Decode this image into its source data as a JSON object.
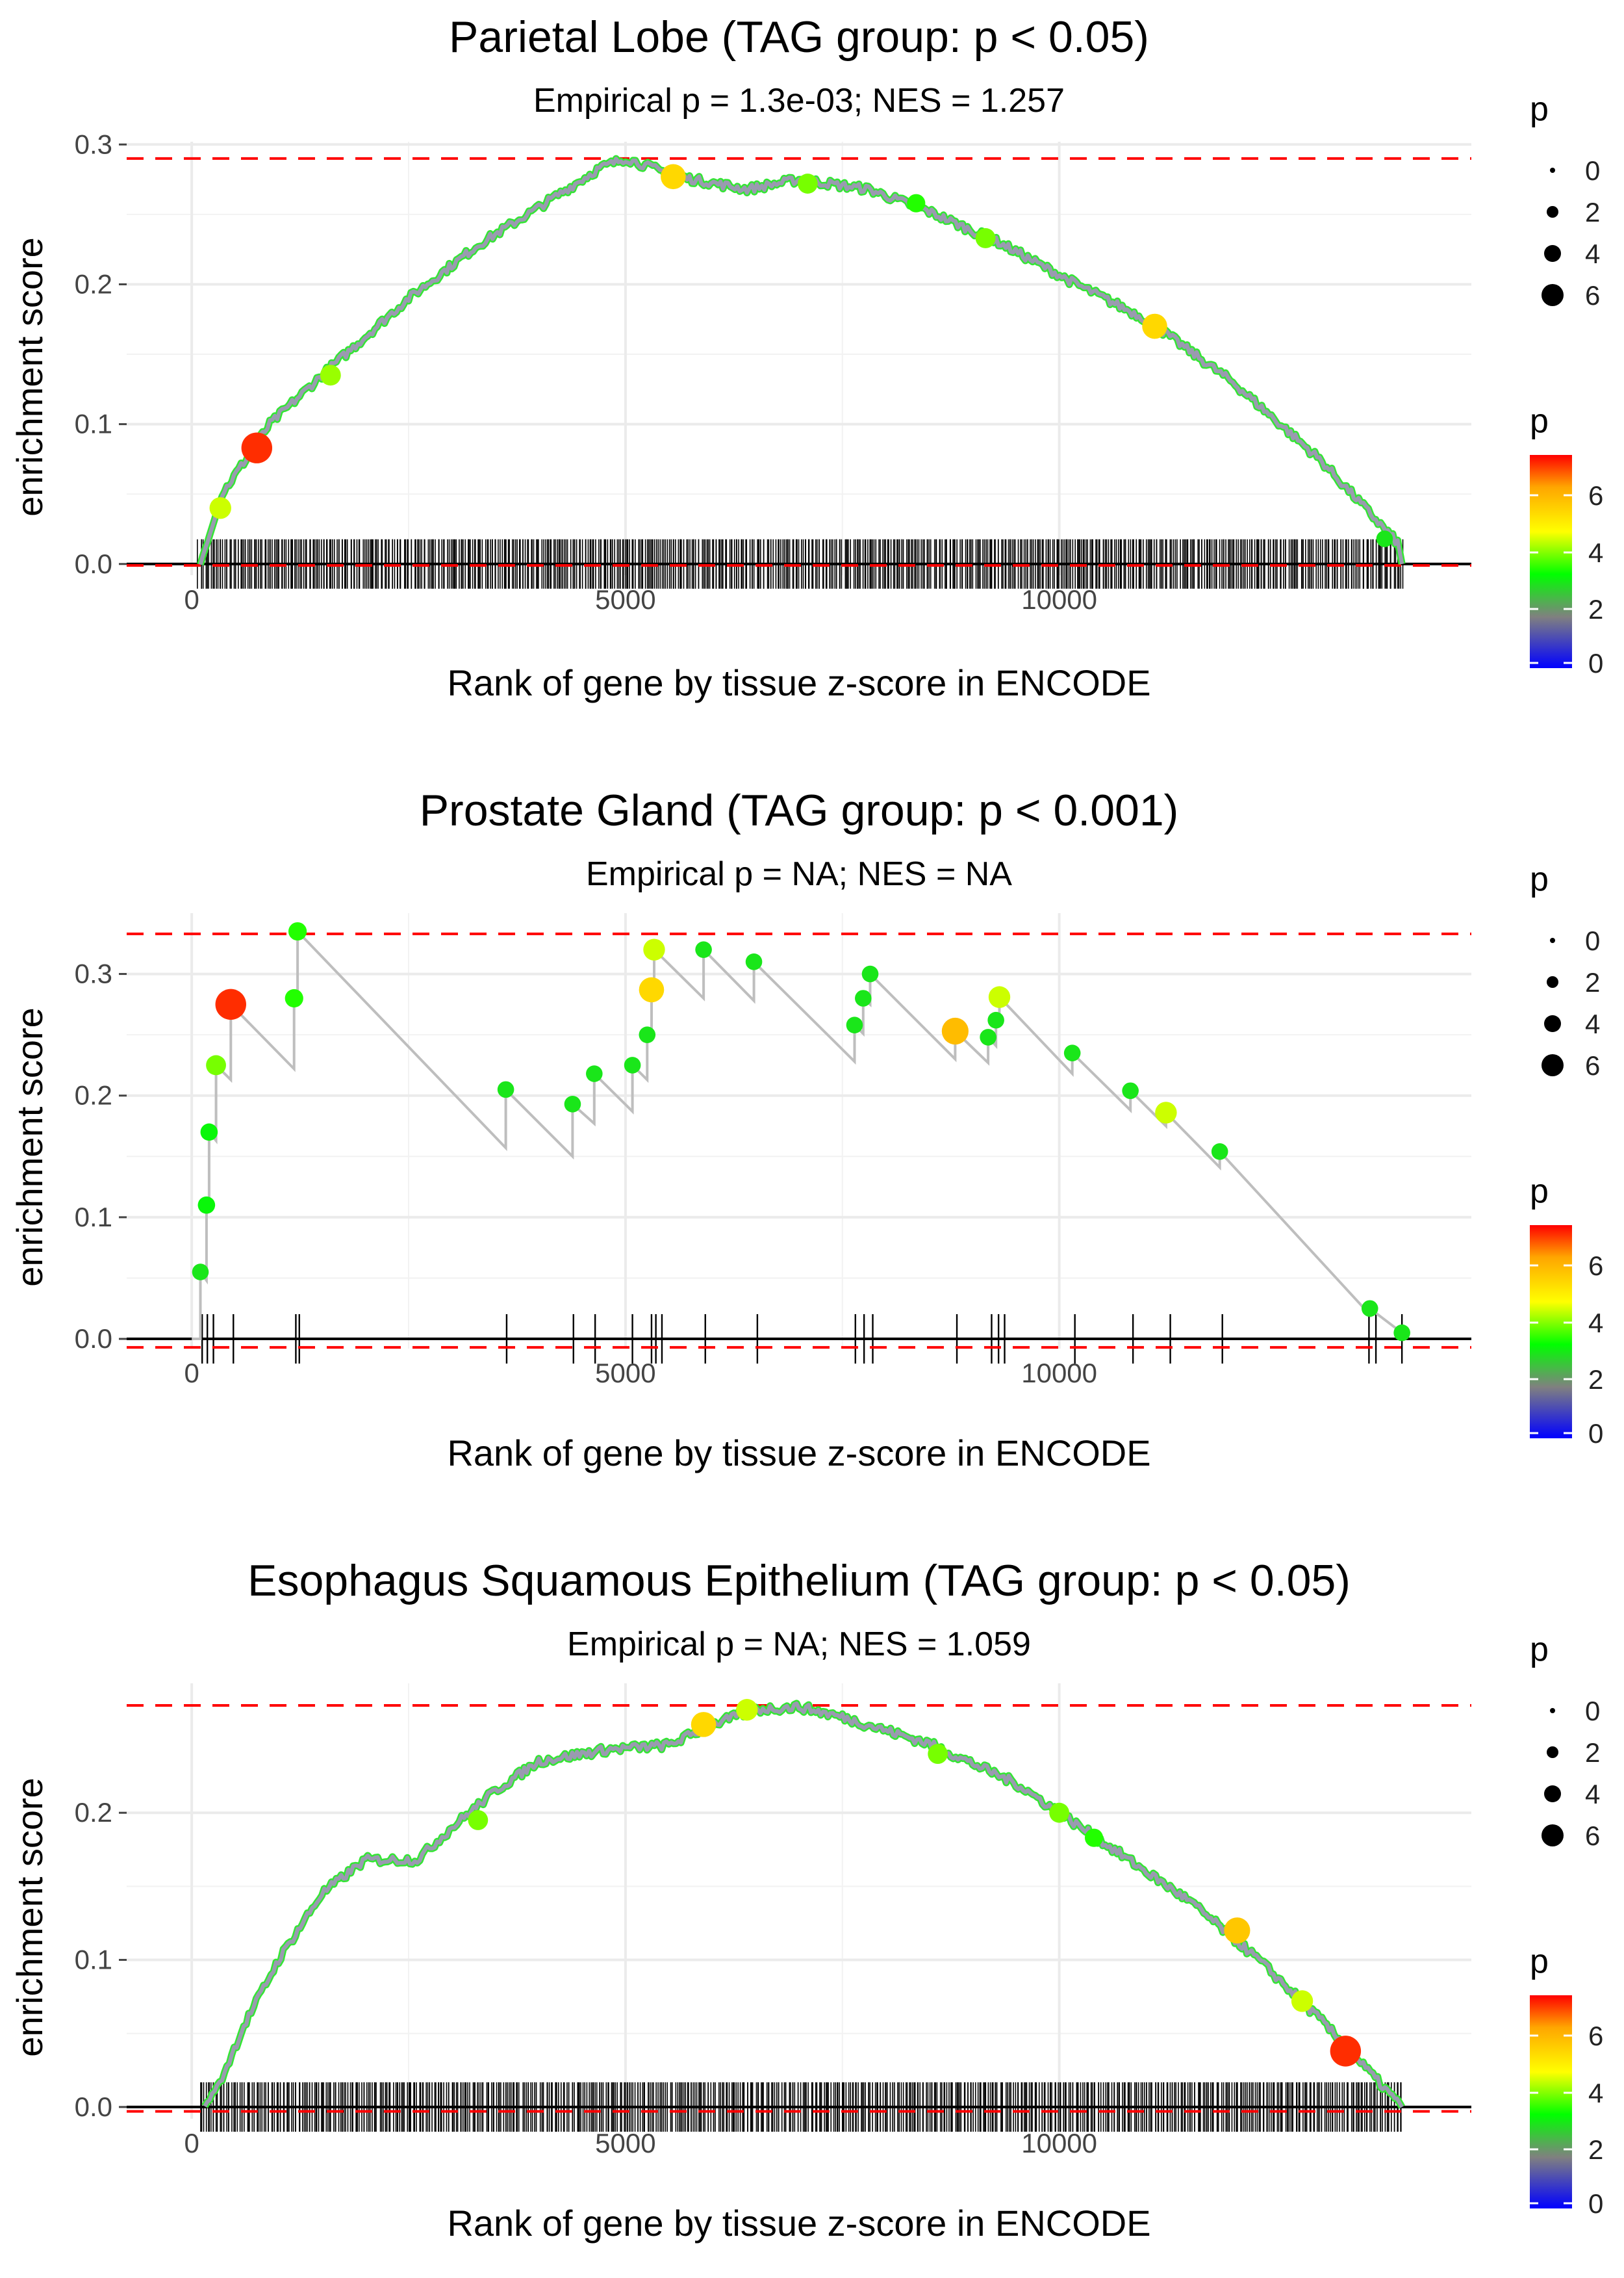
{
  "colors": {
    "gradient": [
      "#0000FF",
      "#808080",
      "#00FF00",
      "#FFFF00",
      "#FFA500",
      "#FF0000"
    ],
    "line": "#BEBEBE",
    "ref_line": "#FF0000",
    "grid": "#EBEBEB",
    "rug": "#000000"
  },
  "legend": {
    "size_title": "p",
    "size_values": [
      0,
      2,
      4,
      6
    ],
    "color_title": "p",
    "color_ticks": [
      0,
      2,
      4,
      6
    ],
    "color_range": [
      0,
      7.5
    ]
  },
  "chart_data": [
    {
      "type": "line",
      "title": "Parietal Lobe (TAG group: p < 0.05)",
      "subtitle": "Empirical p = 1.3e-03; NES = 1.257",
      "xlabel": "Rank of gene by tissue z-score in ENCODE",
      "ylabel": "enrichment score",
      "xlim": [
        -750,
        14750
      ],
      "ylim": [
        -0.008,
        0.302
      ],
      "xticks": [
        0,
        5000,
        10000
      ],
      "yticks": [
        0,
        0.1,
        0.2,
        0.3
      ],
      "ytick_labels": [
        "0.0",
        "0.1",
        "0.2",
        "0.3"
      ],
      "ref_lines": [
        0.29,
        -0.001
      ],
      "dense": true,
      "rug": {
        "start": 80,
        "end": 13950,
        "count": 700
      },
      "curve": [
        [
          100,
          0
        ],
        [
          350,
          0.05
        ],
        [
          900,
          0.1
        ],
        [
          1500,
          0.135
        ],
        [
          2500,
          0.19
        ],
        [
          3300,
          0.228
        ],
        [
          4000,
          0.255
        ],
        [
          4700,
          0.283
        ],
        [
          5000,
          0.29
        ],
        [
          5600,
          0.277
        ],
        [
          6400,
          0.268
        ],
        [
          7000,
          0.275
        ],
        [
          7800,
          0.268
        ],
        [
          8500,
          0.252
        ],
        [
          9300,
          0.23
        ],
        [
          10200,
          0.2
        ],
        [
          11000,
          0.175
        ],
        [
          12000,
          0.13
        ],
        [
          13000,
          0.075
        ],
        [
          13900,
          0.015
        ],
        [
          13950,
          0
        ]
      ],
      "points": [
        [
          750,
          0.083,
          7.2
        ],
        [
          330,
          0.04,
          4.5
        ],
        [
          1600,
          0.135,
          4.2
        ],
        [
          5550,
          0.277,
          5.5
        ],
        [
          7100,
          0.272,
          4.0
        ],
        [
          9150,
          0.233,
          4.0
        ],
        [
          11100,
          0.17,
          5.5
        ],
        [
          8350,
          0.258,
          3.5
        ],
        [
          13750,
          0.018,
          3.0
        ]
      ]
    },
    {
      "type": "line",
      "title": "Prostate Gland (TAG group: p < 0.001)",
      "subtitle": "Empirical p = NA; NES = NA",
      "xlabel": "Rank of gene by tissue z-score in ENCODE",
      "ylabel": "enrichment score",
      "xlim": [
        -750,
        14750
      ],
      "ylim": [
        -0.008,
        0.35
      ],
      "xticks": [
        0,
        5000,
        10000
      ],
      "yticks": [
        0,
        0.1,
        0.2,
        0.3
      ],
      "ytick_labels": [
        "0.0",
        "0.1",
        "0.2",
        "0.3"
      ],
      "ref_lines": [
        0.333,
        -0.007
      ],
      "dense": false,
      "rug": [
        120,
        180,
        250,
        480,
        1200,
        1240,
        3630,
        4400,
        4650,
        5080,
        5300,
        5350,
        5420,
        5920,
        6520,
        7650,
        7750,
        7850,
        8820,
        9220,
        9300,
        9370,
        10180,
        10850,
        11280,
        11880,
        13570,
        13650,
        13950
      ],
      "curve": [
        [
          0,
          0
        ],
        [
          100,
          0
        ],
        [
          100,
          0.055
        ],
        [
          170,
          0.048
        ],
        [
          170,
          0.11
        ],
        [
          200,
          0.105
        ],
        [
          200,
          0.17
        ],
        [
          280,
          0.163
        ],
        [
          280,
          0.225
        ],
        [
          450,
          0.213
        ],
        [
          450,
          0.275
        ],
        [
          1180,
          0.222
        ],
        [
          1180,
          0.28
        ],
        [
          1220,
          0.277
        ],
        [
          1220,
          0.335
        ],
        [
          3620,
          0.157
        ],
        [
          3620,
          0.205
        ],
        [
          4390,
          0.15
        ],
        [
          4390,
          0.193
        ],
        [
          4640,
          0.177
        ],
        [
          4640,
          0.218
        ],
        [
          5080,
          0.187
        ],
        [
          5080,
          0.225
        ],
        [
          5250,
          0.213
        ],
        [
          5250,
          0.25
        ],
        [
          5300,
          0.248
        ],
        [
          5300,
          0.287
        ],
        [
          5330,
          0.285
        ],
        [
          5330,
          0.32
        ],
        [
          5900,
          0.28
        ],
        [
          5900,
          0.32
        ],
        [
          6480,
          0.278
        ],
        [
          6480,
          0.31
        ],
        [
          7640,
          0.228
        ],
        [
          7640,
          0.258
        ],
        [
          7740,
          0.251
        ],
        [
          7740,
          0.28
        ],
        [
          7820,
          0.275
        ],
        [
          7820,
          0.3
        ],
        [
          8800,
          0.23
        ],
        [
          8800,
          0.253
        ],
        [
          9180,
          0.227
        ],
        [
          9180,
          0.248
        ],
        [
          9270,
          0.241
        ],
        [
          9270,
          0.262
        ],
        [
          9310,
          0.259
        ],
        [
          9310,
          0.281
        ],
        [
          10150,
          0.218
        ],
        [
          10150,
          0.235
        ],
        [
          10820,
          0.188
        ],
        [
          10820,
          0.204
        ],
        [
          11230,
          0.175
        ],
        [
          11230,
          0.186
        ],
        [
          11850,
          0.141
        ],
        [
          11850,
          0.154
        ],
        [
          13580,
          0.02
        ],
        [
          13580,
          0.025
        ],
        [
          13950,
          0.005
        ]
      ],
      "points": [
        [
          100,
          0.055,
          3.0
        ],
        [
          170,
          0.11,
          3.2
        ],
        [
          200,
          0.17,
          3.2
        ],
        [
          280,
          0.225,
          4.0
        ],
        [
          450,
          0.275,
          7.2
        ],
        [
          1180,
          0.28,
          3.5
        ],
        [
          1220,
          0.335,
          3.5
        ],
        [
          3620,
          0.205,
          3.0
        ],
        [
          4390,
          0.193,
          3.0
        ],
        [
          4640,
          0.218,
          3.0
        ],
        [
          5080,
          0.225,
          3.0
        ],
        [
          5250,
          0.25,
          3.0
        ],
        [
          5300,
          0.287,
          5.5
        ],
        [
          5330,
          0.32,
          4.5
        ],
        [
          5900,
          0.32,
          3.0
        ],
        [
          6480,
          0.31,
          3.0
        ],
        [
          7640,
          0.258,
          3.0
        ],
        [
          7740,
          0.28,
          3.0
        ],
        [
          7820,
          0.3,
          3.0
        ],
        [
          8800,
          0.253,
          6.0
        ],
        [
          9180,
          0.248,
          3.0
        ],
        [
          9270,
          0.262,
          3.0
        ],
        [
          9310,
          0.281,
          4.5
        ],
        [
          10150,
          0.235,
          3.0
        ],
        [
          10820,
          0.204,
          3.0
        ],
        [
          11230,
          0.186,
          4.5
        ],
        [
          11850,
          0.154,
          3.0
        ],
        [
          13580,
          0.025,
          3.0
        ],
        [
          13950,
          0.005,
          3.0
        ]
      ]
    },
    {
      "type": "line",
      "title": "Esophagus Squamous Epithelium (TAG group: p < 0.05)",
      "subtitle": "Empirical p = NA; NES = 1.059",
      "xlabel": "Rank of gene by tissue z-score in ENCODE",
      "ylabel": "enrichment score",
      "xlim": [
        -750,
        14750
      ],
      "ylim": [
        -0.008,
        0.288
      ],
      "xticks": [
        0,
        5000,
        10000
      ],
      "yticks": [
        0,
        0.1,
        0.2
      ],
      "ytick_labels": [
        "0.0",
        "0.1",
        "0.2"
      ],
      "ref_lines": [
        0.273,
        -0.003
      ],
      "dense": true,
      "rug": {
        "start": 100,
        "end": 13950,
        "count": 700
      },
      "curve": [
        [
          150,
          0
        ],
        [
          350,
          0.02
        ],
        [
          600,
          0.055
        ],
        [
          1000,
          0.1
        ],
        [
          1500,
          0.145
        ],
        [
          2000,
          0.168
        ],
        [
          2600,
          0.168
        ],
        [
          3000,
          0.19
        ],
        [
          3500,
          0.215
        ],
        [
          4000,
          0.235
        ],
        [
          4800,
          0.243
        ],
        [
          5500,
          0.246
        ],
        [
          6000,
          0.26
        ],
        [
          6500,
          0.27
        ],
        [
          7000,
          0.272
        ],
        [
          7500,
          0.265
        ],
        [
          8500,
          0.247
        ],
        [
          9500,
          0.22
        ],
        [
          10500,
          0.18
        ],
        [
          11500,
          0.14
        ],
        [
          12300,
          0.1
        ],
        [
          13000,
          0.06
        ],
        [
          13950,
          0
        ]
      ],
      "points": [
        [
          5900,
          0.26,
          5.5
        ],
        [
          6400,
          0.27,
          4.5
        ],
        [
          12050,
          0.12,
          5.8
        ],
        [
          13300,
          0.038,
          7.2
        ],
        [
          12800,
          0.072,
          4.5
        ],
        [
          8600,
          0.24,
          4.0
        ],
        [
          3300,
          0.195,
          4.0
        ],
        [
          10000,
          0.2,
          4.0
        ],
        [
          10400,
          0.183,
          3.5
        ]
      ]
    }
  ]
}
